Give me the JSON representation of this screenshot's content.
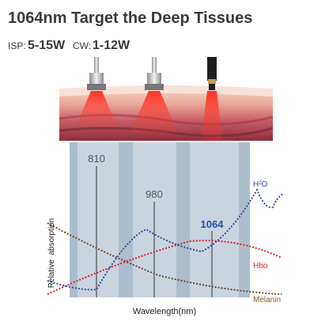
{
  "header": {
    "title": "1064nm Target the Deep Tissues",
    "isp_label": "ISP:",
    "isp_value": "5-15W",
    "cw_label": "CW:",
    "cw_value": "1-12W"
  },
  "diagram": {
    "wavelengths": [
      "810",
      "980",
      "1064"
    ],
    "curves": {
      "water": "H²O",
      "hemoglobin": "Hbo",
      "melanin": "Melanin"
    },
    "y_axis_label": "Relative  absorption",
    "x_axis_label": "Wavelength(nm)"
  }
}
